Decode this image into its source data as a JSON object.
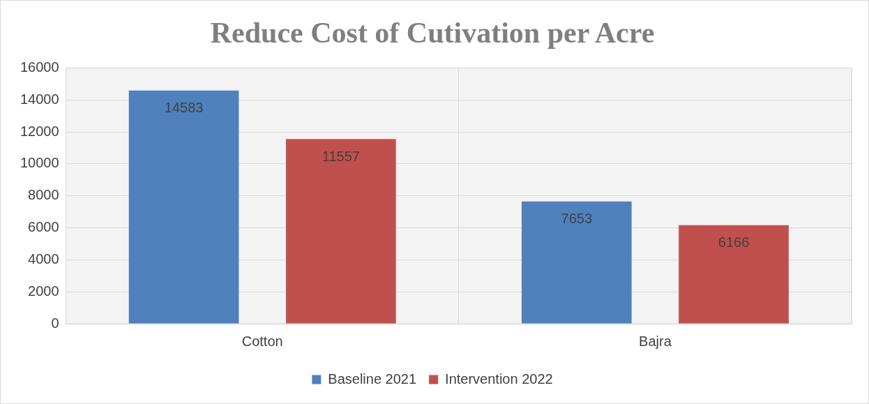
{
  "chart_data": {
    "type": "bar",
    "title": "Reduce Cost of Cutivation per Acre",
    "categories": [
      "Cotton",
      "Bajra"
    ],
    "series": [
      {
        "name": "Baseline 2021",
        "color": "#4f81bd",
        "values": [
          14583,
          7653
        ]
      },
      {
        "name": "Intervention 2022",
        "color": "#c0504d",
        "values": [
          11557,
          6166
        ]
      }
    ],
    "ylim": [
      0,
      16000
    ],
    "yticks": [
      0,
      2000,
      4000,
      6000,
      8000,
      10000,
      12000,
      14000,
      16000
    ],
    "grid": true,
    "legend": "bottom",
    "data_labels": true
  }
}
